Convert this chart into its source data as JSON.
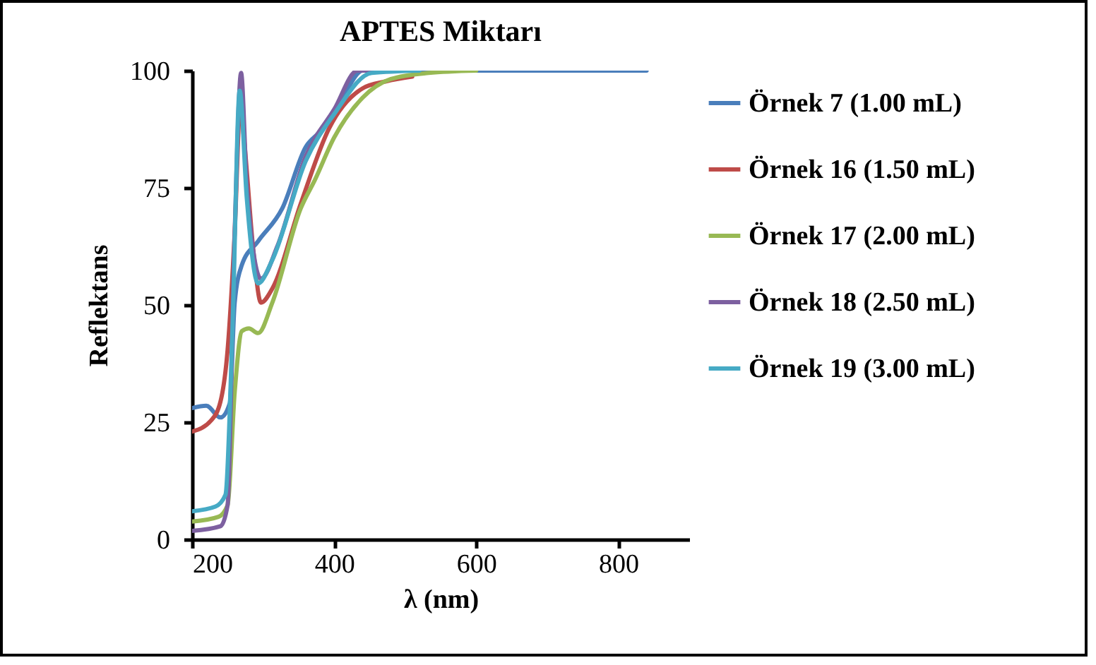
{
  "chart_data": {
    "type": "line",
    "title": "APTES Miktarı",
    "xlabel": "λ (nm)",
    "ylabel": "Reflektans",
    "xlim": [
      200,
      900
    ],
    "xticks": [
      200,
      400,
      600,
      800
    ],
    "ylim": [
      0,
      100
    ],
    "yticks": [
      0,
      25,
      50,
      75,
      100
    ],
    "grid": false,
    "legend": "right",
    "line_style": "solid",
    "marker": "none",
    "series": [
      {
        "name": "Örnek 7 (1.00 mL)",
        "color": "#4a7ebb",
        "x": [
          200,
          220,
          240,
          253,
          260,
          270,
          293,
          327,
          360,
          380,
          413,
          440,
          600,
          840
        ],
        "values": [
          28,
          28.5,
          26,
          29,
          50.5,
          58.5,
          63.6,
          70.6,
          83.7,
          87,
          94.6,
          100,
          100,
          100
        ]
      },
      {
        "name": "Örnek 16 (1.50 mL)",
        "color": "#be4b48",
        "x": [
          200,
          227,
          240,
          250,
          260,
          268,
          273,
          287,
          297,
          313,
          353,
          393,
          440,
          473,
          510
        ],
        "values": [
          23,
          25.4,
          29.4,
          40.4,
          65.5,
          92.7,
          85.7,
          60.5,
          50.5,
          53.5,
          71.6,
          87.7,
          96.2,
          97.7,
          98.7
        ]
      },
      {
        "name": "Örnek 17 (2.00 mL)",
        "color": "#98b954",
        "x": [
          200,
          237,
          250,
          260,
          270,
          280,
          293,
          313,
          353,
          373,
          400,
          440,
          480,
          533,
          600
        ],
        "values": [
          3.8,
          4.8,
          7.3,
          31.4,
          44.4,
          45,
          44,
          50.5,
          70.6,
          76.7,
          85.7,
          94.2,
          98.2,
          99.5,
          100
        ]
      },
      {
        "name": "Örnek 18 (2.50 mL)",
        "color": "#7d60a0",
        "x": [
          200,
          240,
          250,
          260,
          269,
          277,
          297,
          320,
          360,
          400,
          433,
          500
        ],
        "values": [
          1.8,
          2.8,
          7.3,
          65.5,
          99.5,
          75.8,
          55.6,
          62.5,
          81.7,
          91.7,
          100,
          100
        ]
      },
      {
        "name": "Örnek 19 (3.00 mL)",
        "color": "#46aac5",
        "x": [
          200,
          233,
          247,
          257,
          267,
          277,
          293,
          313,
          360,
          400,
          453,
          520
        ],
        "values": [
          6,
          7,
          9.5,
          45.5,
          95.7,
          72.8,
          54.6,
          59.6,
          80.7,
          90.7,
          99.5,
          100
        ]
      }
    ]
  }
}
